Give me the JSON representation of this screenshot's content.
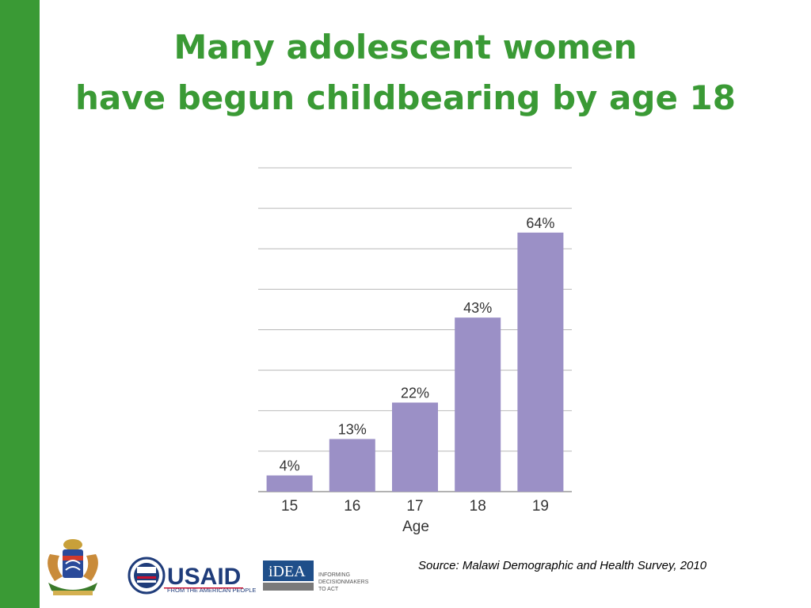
{
  "slide": {
    "title_line1": "Many adolescent women",
    "title_line2": "have begun childbearing by age 18",
    "source": "Source: Malawi Demographic and Health Survey, 2010"
  },
  "colors": {
    "accent": "#3a9a35",
    "bar": "#9b90c6",
    "grid": "#b8b8b8"
  },
  "logos": {
    "usaid_word": "USAID",
    "usaid_tagline": "FROM THE AMERICAN PEOPLE",
    "idea_word": "iDEA",
    "idea_line1": "INFORMING",
    "idea_line2": "DECISIONMAKERS",
    "idea_line3": "TO ACT"
  },
  "chart_data": {
    "type": "bar",
    "categories": [
      "15",
      "16",
      "17",
      "18",
      "19"
    ],
    "values": [
      4,
      13,
      22,
      43,
      64
    ],
    "data_labels": [
      "4%",
      "13%",
      "22%",
      "43%",
      "64%"
    ],
    "title": "",
    "xlabel": "Age",
    "ylabel": "",
    "ylim": [
      0,
      80
    ],
    "grid": true,
    "legend": "none"
  }
}
